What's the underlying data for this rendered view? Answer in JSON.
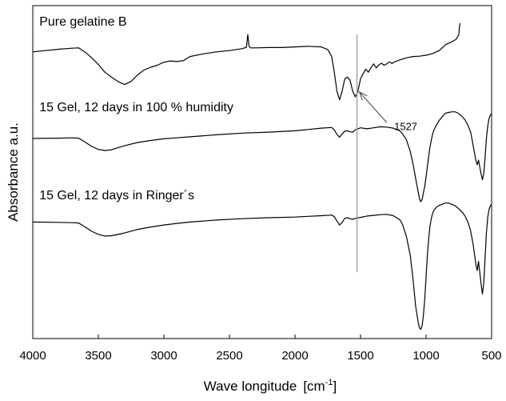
{
  "chart_data": {
    "type": "line",
    "title": "",
    "xlabel": "Wave longitude",
    "xlabel_unit": "[cm",
    "xlabel_unit_sup": "-1",
    "xlabel_unit_close": "]",
    "ylabel": "Absorbance a.u.",
    "x_reversed": true,
    "xlim": [
      4000,
      500
    ],
    "ylim": [
      0,
      100
    ],
    "y_tick_labels_shown": false,
    "grid": false,
    "legend": "none",
    "x_ticks": [
      4000,
      3500,
      3000,
      2500,
      2000,
      1500,
      1000,
      500
    ],
    "x_tick_labels": [
      "4000",
      "3500",
      "3000",
      "2500",
      "2000",
      "1500",
      "1000",
      "500"
    ],
    "series": [
      {
        "key": "gelatine",
        "label": "Pure gelatine B",
        "color": "#000000",
        "x": [
          4000,
          3800,
          3700,
          3650,
          3600,
          3550,
          3500,
          3450,
          3400,
          3350,
          3300,
          3250,
          3200,
          3150,
          3100,
          3050,
          3000,
          2950,
          2900,
          2850,
          2800,
          2700,
          2600,
          2500,
          2400,
          2370,
          2360,
          2350,
          2340,
          2300,
          2200,
          2100,
          2000,
          1900,
          1800,
          1750,
          1720,
          1700,
          1680,
          1660,
          1640,
          1620,
          1600,
          1580,
          1560,
          1540,
          1520,
          1500,
          1480,
          1460,
          1440,
          1420,
          1400,
          1380,
          1360,
          1340,
          1320,
          1300,
          1280,
          1260,
          1240,
          1200,
          1150,
          1100,
          1050,
          1000,
          950,
          900,
          850,
          800,
          770,
          750,
          745,
          740
        ],
        "y": [
          86.1,
          86.9,
          87.2,
          87.3,
          86.0,
          84.3,
          82.3,
          80.0,
          78.5,
          77.2,
          76.3,
          77.2,
          79.2,
          80.7,
          81.5,
          82.1,
          83.0,
          83.4,
          83.2,
          83.5,
          84.7,
          85.5,
          86.1,
          86.5,
          87.1,
          87.5,
          91.3,
          87.8,
          87.3,
          87.3,
          87.4,
          87.4,
          87.6,
          87.8,
          87.6,
          86.8,
          84.7,
          80.0,
          74.3,
          71.7,
          74.3,
          78.0,
          78.5,
          77.6,
          74.3,
          72.6,
          74.2,
          78.0,
          79.6,
          80.9,
          80.0,
          81.3,
          82.5,
          81.3,
          82.2,
          82.7,
          82.1,
          82.5,
          83.1,
          82.6,
          83.1,
          83.7,
          84.3,
          84.7,
          84.8,
          85.1,
          85.6,
          86.5,
          88.3,
          89.2,
          89.9,
          91.3,
          93.7,
          94.7
        ]
      },
      {
        "key": "humidity",
        "label": "15 Gel, 12 days in 100 % humidity",
        "color": "#000000",
        "x": [
          4000,
          3800,
          3700,
          3650,
          3600,
          3550,
          3500,
          3450,
          3400,
          3300,
          3200,
          3100,
          3000,
          2900,
          2800,
          2600,
          2400,
          2200,
          2000,
          1900,
          1800,
          1720,
          1700,
          1680,
          1660,
          1640,
          1620,
          1600,
          1580,
          1560,
          1540,
          1500,
          1450,
          1400,
          1350,
          1300,
          1250,
          1200,
          1180,
          1150,
          1120,
          1100,
          1080,
          1060,
          1050,
          1040,
          1030,
          1020,
          1010,
          1000,
          990,
          980,
          970,
          960,
          950,
          940,
          920,
          900,
          880,
          860,
          850,
          830,
          800,
          780,
          760,
          740,
          720,
          700,
          680,
          660,
          640,
          620,
          610,
          600,
          590,
          580,
          570,
          560,
          550,
          540,
          530,
          520,
          510,
          500
        ],
        "y": [
          60.1,
          60.2,
          60.3,
          60.2,
          59.0,
          57.7,
          56.8,
          56.5,
          56.7,
          57.9,
          58.9,
          59.5,
          60.0,
          60.3,
          60.6,
          61.2,
          61.7,
          62.0,
          62.4,
          62.8,
          63.2,
          63.4,
          62.7,
          61.3,
          60.5,
          61.4,
          62.3,
          62.4,
          62.1,
          62.0,
          62.7,
          63.3,
          63.0,
          63.3,
          63.6,
          63.5,
          63.2,
          62.4,
          61.5,
          59.7,
          56.1,
          52.6,
          48.2,
          44.0,
          42.0,
          41.1,
          41.8,
          43.8,
          45.8,
          48.5,
          51.6,
          54.8,
          57.5,
          59.7,
          61.4,
          62.6,
          64.2,
          65.5,
          66.5,
          67.4,
          67.7,
          67.9,
          68.1,
          68.1,
          67.8,
          67.2,
          66.5,
          65.5,
          64.0,
          62.0,
          57.9,
          53.5,
          52.2,
          53.6,
          51.5,
          49.4,
          47.7,
          49.6,
          54.3,
          59.8,
          63.7,
          66.0,
          67.1,
          67.6
        ]
      },
      {
        "key": "ringer",
        "label": "15 Gel, 12 days in Ringer´s",
        "color": "#000000",
        "x": [
          4000,
          3800,
          3700,
          3650,
          3600,
          3550,
          3500,
          3450,
          3400,
          3300,
          3200,
          3100,
          3000,
          2900,
          2800,
          2600,
          2400,
          2200,
          2000,
          1900,
          1800,
          1720,
          1700,
          1680,
          1660,
          1640,
          1620,
          1600,
          1580,
          1560,
          1540,
          1500,
          1450,
          1400,
          1350,
          1300,
          1250,
          1200,
          1180,
          1150,
          1120,
          1100,
          1080,
          1060,
          1050,
          1040,
          1030,
          1020,
          1010,
          1000,
          990,
          980,
          970,
          960,
          950,
          940,
          920,
          900,
          880,
          860,
          850,
          830,
          800,
          780,
          760,
          740,
          720,
          700,
          680,
          660,
          640,
          620,
          610,
          600,
          590,
          580,
          570,
          560,
          550,
          540,
          530,
          520,
          510,
          500
        ],
        "y": [
          35.0,
          34.9,
          34.8,
          34.7,
          33.5,
          32.2,
          31.3,
          30.8,
          30.9,
          31.7,
          32.8,
          33.5,
          34.1,
          34.6,
          35.0,
          35.6,
          36.0,
          36.3,
          36.5,
          36.7,
          36.9,
          37.1,
          36.6,
          35.3,
          34.1,
          34.9,
          36.1,
          36.3,
          36.0,
          35.8,
          36.1,
          36.4,
          36.8,
          37.0,
          37.2,
          37.3,
          36.9,
          35.7,
          34.3,
          30.7,
          24.9,
          18.1,
          9.8,
          4.8,
          3.2,
          2.8,
          3.9,
          7.1,
          12.0,
          18.5,
          24.8,
          30.0,
          33.7,
          36.1,
          37.6,
          38.5,
          39.5,
          40.0,
          40.3,
          40.6,
          40.7,
          40.7,
          40.3,
          39.9,
          39.3,
          38.6,
          37.8,
          36.6,
          34.9,
          32.3,
          28.1,
          22.3,
          20.4,
          23.2,
          19.9,
          16.3,
          13.4,
          16.6,
          24.0,
          31.5,
          36.3,
          38.7,
          39.8,
          40.4
        ]
      }
    ],
    "annotations": [
      {
        "text": "1527",
        "x": 1527,
        "y_line_top": 91.3,
        "y_line_bottom": 20.0,
        "arrow_target": [
          1527,
          74.3
        ],
        "arrow_tail": [
          1300,
          64.9
        ],
        "label_at": [
          1155,
          62.6
        ]
      }
    ],
    "trace_label_anchors": [
      {
        "series": "gelatine",
        "x": 3950,
        "y": 94.0
      },
      {
        "series": "humidity",
        "x": 3950,
        "y": 68.3
      },
      {
        "series": "ringer",
        "x": 3950,
        "y": 41.8
      }
    ]
  }
}
